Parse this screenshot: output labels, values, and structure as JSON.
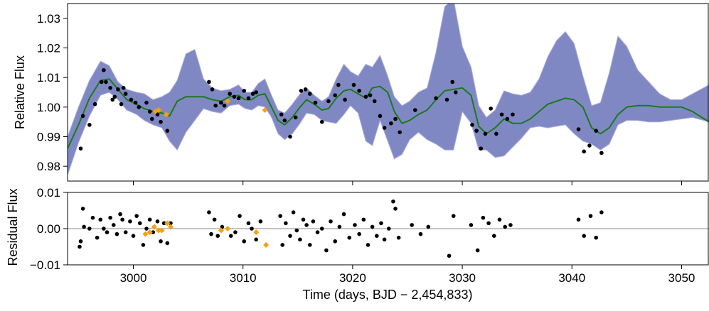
{
  "colors": {
    "band": "#8088c4",
    "band_edge": "#a9aedb",
    "model_line": "#1a7a1a",
    "data_point": "#000000",
    "flagged_point": "#f5a10a",
    "zero_line": "#b0b0b0"
  },
  "chart_data": [
    {
      "type": "line",
      "title": "",
      "xlabel": "",
      "ylabel": "Relative Flux",
      "xlim": [
        2994,
        3052.5
      ],
      "ylim": [
        0.975,
        1.035
      ],
      "yticks": [
        0.98,
        0.99,
        1.0,
        1.01,
        1.02,
        1.03
      ],
      "ytick_labels": [
        "0.98",
        "0.99",
        "1.00",
        "1.01",
        "1.02",
        "1.03"
      ],
      "grid": false,
      "series": [
        {
          "role": "model-mean",
          "style": "line",
          "x": [
            2994,
            2995,
            2996,
            2997,
            2997.8,
            2998.6,
            2999.4,
            3000.3,
            3001,
            3001.8,
            3002.6,
            3003.3,
            3004,
            3004.8,
            3005.6,
            3006.4,
            3007.2,
            3008,
            3008.8,
            3009.6,
            3010.2,
            3010.8,
            3011.4,
            3012,
            3012.6,
            3013.2,
            3013.8,
            3014.5,
            3015.2,
            3015.8,
            3016.5,
            3017.2,
            3017.8,
            3018.5,
            3019.2,
            3019.8,
            3020.5,
            3021.2,
            3021.8,
            3022.5,
            3023.2,
            3023.8,
            3024.5,
            3025.2,
            3026,
            3026.8,
            3027.6,
            3028.4,
            3029.2,
            3030,
            3030.8,
            3031.5,
            3032.2,
            3033,
            3033.8,
            3034.6,
            3035.4,
            3036.2,
            3037,
            3037.8,
            3038.6,
            3039.4,
            3040.2,
            3041,
            3041.8,
            3042.6,
            3043.4,
            3044.2,
            3045,
            3046,
            3047,
            3048,
            3049,
            3050,
            3051,
            3052.5
          ],
          "values": [
            0.986,
            0.994,
            1.003,
            1.009,
            1.0095,
            1.006,
            1.0025,
            1.001,
            0.9995,
            0.9985,
            0.998,
            0.997,
            1.002,
            1.0035,
            1.0035,
            1.0035,
            1.0025,
            1.002,
            1.0035,
            1.004,
            1.0025,
            1.0025,
            1.004,
            1.0045,
            1.0,
            0.9955,
            0.994,
            0.9965,
            1.0,
            1.0025,
            1.001,
            0.999,
            0.9995,
            1.003,
            1.0055,
            1.006,
            1.0045,
            1.003,
            1.0065,
            1.007,
            1.005,
            0.9985,
            0.9945,
            0.9955,
            0.9975,
            0.999,
            1.0025,
            1.0055,
            1.006,
            1.0065,
            1.004,
            0.9935,
            0.991,
            0.993,
            0.996,
            0.9945,
            0.9945,
            0.996,
            0.9985,
            1.001,
            1.002,
            1.003,
            1.0025,
            1.0,
            0.993,
            0.991,
            0.993,
            0.9975,
            1.0,
            1.0005,
            1.0005,
            1.0,
            1.0,
            1.0,
            0.9985,
            0.995
          ]
        },
        {
          "role": "uncertainty-band-upper",
          "style": "band",
          "x": [
            2994,
            2995,
            2996,
            2997,
            2997.8,
            2998.6,
            2999.4,
            3000.3,
            3001,
            3001.8,
            3002.6,
            3003.3,
            3004,
            3004.8,
            3005.6,
            3006.4,
            3007.2,
            3008,
            3008.8,
            3009.6,
            3010.2,
            3010.8,
            3011.4,
            3012,
            3012.6,
            3013.2,
            3013.8,
            3014.5,
            3015.2,
            3015.8,
            3016.5,
            3017.2,
            3017.8,
            3018.5,
            3019.2,
            3019.8,
            3020.5,
            3021.2,
            3021.8,
            3022.5,
            3023.2,
            3023.8,
            3024.5,
            3025.2,
            3026,
            3026.8,
            3027.6,
            3028.4,
            3029.2,
            3030,
            3030.8,
            3031.5,
            3032.2,
            3033,
            3033.8,
            3034.6,
            3035.4,
            3036.2,
            3037,
            3037.8,
            3038.6,
            3039.4,
            3040.2,
            3041,
            3041.8,
            3042.6,
            3043.4,
            3044.2,
            3045,
            3046,
            3047,
            3048,
            3049,
            3050,
            3051,
            3052.5
          ],
          "values": [
            0.99,
            1.0,
            1.009,
            1.0155,
            1.014,
            1.0085,
            1.006,
            1.005,
            1.0045,
            1.0025,
            1.0035,
            1.005,
            1.009,
            1.018,
            1.0195,
            1.0095,
            1.0065,
            1.0055,
            1.006,
            1.0075,
            1.005,
            1.005,
            1.008,
            1.0095,
            1.004,
            0.999,
            0.998,
            1.001,
            1.0045,
            1.0065,
            1.004,
            1.002,
            1.0035,
            1.0095,
            1.0145,
            1.012,
            1.0105,
            1.0145,
            1.0135,
            1.0175,
            1.0105,
            1.0035,
            1.0005,
            1.002,
            1.005,
            1.0065,
            1.0185,
            1.034,
            1.0365,
            1.0205,
            1.0135,
            1.0005,
            0.9965,
            0.999,
            1.0055,
            1.0045,
            1.004,
            1.005,
            1.0095,
            1.017,
            1.0225,
            1.0255,
            1.0215,
            1.0105,
            1.0005,
            1.0015,
            1.0115,
            1.024,
            1.0205,
            1.0125,
            1.0085,
            1.0045,
            1.0025,
            1.0025,
            1.0045,
            1.0075
          ]
        },
        {
          "role": "uncertainty-band-lower",
          "style": "band",
          "x": [
            2994,
            2995,
            2996,
            2997,
            2997.8,
            2998.6,
            2999.4,
            3000.3,
            3001,
            3001.8,
            3002.6,
            3003.3,
            3004,
            3004.8,
            3005.6,
            3006.4,
            3007.2,
            3008,
            3008.8,
            3009.6,
            3010.2,
            3010.8,
            3011.4,
            3012,
            3012.6,
            3013.2,
            3013.8,
            3014.5,
            3015.2,
            3015.8,
            3016.5,
            3017.2,
            3017.8,
            3018.5,
            3019.2,
            3019.8,
            3020.5,
            3021.2,
            3021.8,
            3022.5,
            3023.2,
            3023.8,
            3024.5,
            3025.2,
            3026,
            3026.8,
            3027.6,
            3028.4,
            3029.2,
            3030,
            3030.8,
            3031.5,
            3032.2,
            3033,
            3033.8,
            3034.6,
            3035.4,
            3036.2,
            3037,
            3037.8,
            3038.6,
            3039.4,
            3040.2,
            3041,
            3041.8,
            3042.6,
            3043.4,
            3044.2,
            3045,
            3046,
            3047,
            3048,
            3049,
            3050,
            3051,
            3052.5
          ],
          "values": [
            0.977,
            0.988,
            0.997,
            1.004,
            1.005,
            1.0025,
            0.999,
            0.9975,
            0.9955,
            0.994,
            0.993,
            0.9885,
            0.9855,
            0.9915,
            0.9955,
            0.9995,
            0.9985,
            0.998,
            1.0005,
            1.001,
            0.9995,
            0.999,
            1.0005,
            1.0,
            0.9965,
            0.991,
            0.989,
            0.991,
            0.9945,
            0.998,
            0.9975,
            0.9955,
            0.995,
            0.9945,
            0.9975,
            1.0005,
            0.998,
            0.9885,
            0.987,
            0.9955,
            0.9885,
            0.9825,
            0.984,
            0.989,
            0.9915,
            0.989,
            0.9875,
            0.9855,
            0.9855,
            0.9985,
            0.9945,
            0.9855,
            0.9855,
            0.983,
            0.9835,
            0.9865,
            0.9895,
            0.993,
            0.9935,
            0.993,
            0.9935,
            0.994,
            0.991,
            0.9885,
            0.9875,
            0.9855,
            0.9875,
            0.994,
            0.9955,
            0.9955,
            0.995,
            0.995,
            0.9955,
            0.996,
            0.9965,
            0.995
          ]
        },
        {
          "role": "observations",
          "style": "points",
          "x": [
            2995.2,
            2995.4,
            2996.0,
            2996.5,
            2997.1,
            2997.3,
            2997.5,
            2997.9,
            2998.1,
            2998.3,
            2998.6,
            2998.9,
            2999.1,
            2999.3,
            2999.8,
            3000.2,
            3000.5,
            3001.2,
            3001.5,
            3001.7,
            3002.2,
            3002.5,
            3003.1,
            3006.9,
            3007.2,
            3007.5,
            3008.0,
            3008.3,
            3008.8,
            3009.2,
            3009.6,
            3010.1,
            3010.5,
            3010.9,
            3011.2,
            3013.5,
            3013.8,
            3014.3,
            3014.8,
            3015.3,
            3015.7,
            3016.1,
            3016.6,
            3017.2,
            3017.8,
            3018.4,
            3018.7,
            3019.3,
            3020.1,
            3020.6,
            3021.2,
            3021.6,
            3022.0,
            3022.5,
            3022.9,
            3023.5,
            3023.9,
            3024.3,
            3025.7,
            3027.6,
            3028.6,
            3029.1,
            3029.4,
            3030.9,
            3031.3,
            3031.7,
            3032.1,
            3032.6,
            3033.1,
            3033.6,
            3034.1,
            3034.6,
            3040.6,
            3041.1,
            3041.6,
            3042.2,
            3042.7
          ],
          "values": [
            0.986,
            0.997,
            0.994,
            1.001,
            1.0085,
            1.0125,
            1.0085,
            1.0065,
            1.0025,
            1.0035,
            1.006,
            1.001,
            1.0065,
            1.0045,
            1.0025,
            1.0015,
            1.0,
            1.0015,
            0.9985,
            0.996,
            0.9975,
            0.995,
            0.992,
            1.0085,
            1.006,
            1.0005,
            1.0015,
            1.0005,
            1.0045,
            1.0035,
            1.003,
            1.0055,
            1.003,
            1.0045,
            1.005,
            0.9975,
            0.9955,
            0.99,
            0.9965,
            1.0055,
            1.006,
            1.0045,
            1.0015,
            0.995,
            1.002,
            1.004,
            1.0075,
            1.0025,
            1.0075,
            1.0055,
            1.0035,
            1.004,
            1.002,
            0.997,
            0.993,
            0.9945,
            0.996,
            0.9915,
            0.999,
            1.003,
            1.0025,
            1.0085,
            1.005,
            0.994,
            0.992,
            0.986,
            0.991,
            0.9995,
            0.991,
            0.9975,
            0.996,
            0.9975,
            0.9925,
            0.985,
            0.987,
            0.992,
            0.9845
          ]
        },
        {
          "role": "flagged-observations",
          "style": "diamonds",
          "x": [
            3002.0,
            3002.3,
            3003.0,
            3008.6,
            3012.0
          ],
          "values": [
            0.9985,
            0.999,
            0.9975,
            1.002,
            0.999
          ]
        }
      ]
    },
    {
      "type": "scatter",
      "title": "",
      "xlabel": "Time (days, BJD − 2,454,833)",
      "ylabel": "Residual Flux",
      "xlim": [
        2994,
        3052.5
      ],
      "ylim": [
        -0.01,
        0.01
      ],
      "xticks": [
        3000,
        3010,
        3020,
        3030,
        3040,
        3050
      ],
      "xtick_labels": [
        "3000",
        "3010",
        "3020",
        "3030",
        "3040",
        "3050"
      ],
      "yticks": [
        -0.01,
        0.0,
        0.01
      ],
      "ytick_labels": [
        "−0.01",
        "0.00",
        "0.01"
      ],
      "reference_line": 0,
      "grid": false,
      "series": [
        {
          "role": "residuals",
          "style": "points",
          "x": [
            2995.1,
            2995.2,
            2995.4,
            2995.5,
            2996.0,
            2996.3,
            2996.7,
            2997.0,
            2997.3,
            2997.6,
            2997.9,
            2998.2,
            2998.5,
            2998.8,
            2999.0,
            2999.3,
            2999.7,
            3000.0,
            3000.3,
            3000.6,
            3000.9,
            3001.2,
            3001.5,
            3001.8,
            3002.2,
            3002.5,
            3002.8,
            3003.1,
            3003.4,
            3006.9,
            3007.1,
            3007.4,
            3007.7,
            3008.1,
            3008.9,
            3009.3,
            3009.7,
            3010.1,
            3010.5,
            3010.8,
            3011.2,
            3011.6,
            3013.4,
            3013.6,
            3013.9,
            3014.3,
            3014.6,
            3014.9,
            3015.2,
            3015.5,
            3015.8,
            3016.1,
            3016.4,
            3016.8,
            3017.2,
            3017.6,
            3018.0,
            3018.4,
            3018.8,
            3019.2,
            3019.7,
            3020.2,
            3020.6,
            3021.0,
            3021.4,
            3021.8,
            3022.2,
            3022.6,
            3022.9,
            3023.3,
            3023.7,
            3023.9,
            3024.2,
            3025.4,
            3026.2,
            3026.9,
            3028.8,
            3029.2,
            3030.8,
            3031.4,
            3031.9,
            3032.4,
            3032.9,
            3033.4,
            3033.9,
            3034.4,
            3040.6,
            3041.1,
            3041.7,
            3042.2,
            3042.7
          ],
          "values": [
            -0.005,
            -0.0035,
            0.0055,
            0.0005,
            0.0,
            0.003,
            -0.0025,
            0.0025,
            0.0,
            -0.001,
            0.003,
            0.001,
            -0.0015,
            0.004,
            0.0025,
            -0.001,
            0.002,
            -0.002,
            0.0035,
            0.0015,
            -0.0045,
            0.0,
            0.0025,
            -0.001,
            0.002,
            -0.0035,
            0.0015,
            -0.004,
            0.0015,
            0.0045,
            -0.0015,
            0.0025,
            -0.002,
            0.0005,
            -0.002,
            -0.001,
            0.0035,
            -0.0035,
            0.0015,
            0.0,
            -0.003,
            0.002,
            0.0035,
            -0.0045,
            0.0015,
            -0.002,
            0.0045,
            -0.0005,
            -0.003,
            0.0025,
            0.001,
            -0.0045,
            0.002,
            -0.001,
            0.0,
            -0.006,
            0.002,
            -0.0035,
            0.0005,
            0.004,
            -0.0025,
            0.001,
            -0.0015,
            0.0025,
            -0.0045,
            0.0005,
            -0.002,
            0.0015,
            -0.003,
            0.0,
            0.0075,
            0.0055,
            -0.0025,
            0.001,
            -0.0015,
            0.0005,
            -0.0075,
            0.0035,
            0.001,
            -0.006,
            0.003,
            0.0015,
            -0.002,
            0.0025,
            0.0005,
            0.001,
            0.0025,
            -0.002,
            0.0035,
            -0.0025,
            0.0045
          ]
        },
        {
          "role": "flagged-residuals",
          "style": "diamonds",
          "x": [
            3001.1,
            3001.5,
            3001.9,
            3002.3,
            3002.6,
            3003.1,
            3003.4,
            3008.0,
            3008.6,
            3011.2,
            3012.1
          ],
          "values": [
            -0.0015,
            -0.001,
            0.0005,
            -0.0005,
            -0.0005,
            0.0015,
            0.0005,
            -0.0005,
            0.0,
            -0.001,
            -0.0045
          ]
        }
      ]
    }
  ]
}
